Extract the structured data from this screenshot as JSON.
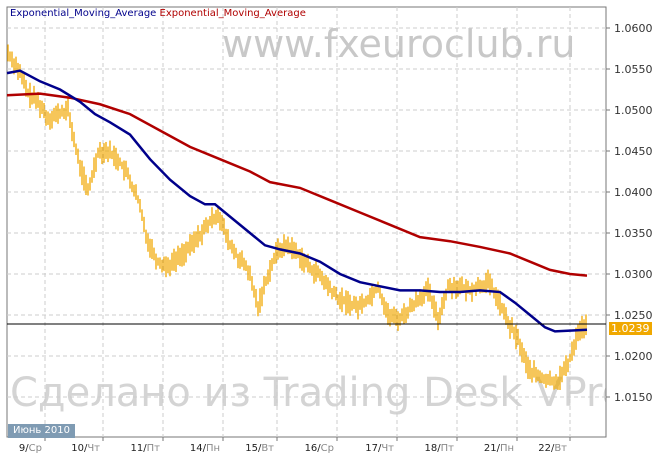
{
  "chart_data": {
    "type": "line",
    "title": "",
    "legend": [
      {
        "name": "Exponential_Moving_Average",
        "color": "#00008b"
      },
      {
        "name": "Exponential_Moving_Average",
        "color": "#b00000"
      }
    ],
    "legend_placement": "top-left",
    "ylim": [
      1.0125,
      1.063
    ],
    "yticks": [
      "1.0600",
      "1.0550",
      "1.0500",
      "1.0450",
      "1.0400",
      "1.0350",
      "1.0300",
      "1.0250",
      "1.0200",
      "1.0150"
    ],
    "month_label": "Июнь 2010",
    "xticks": [
      {
        "pos": 3.8,
        "day": "9",
        "dow": "Ср"
      },
      {
        "pos": 9.6,
        "day": "10",
        "dow": "Чт"
      },
      {
        "pos": 15.6,
        "day": "11",
        "dow": "Пт"
      },
      {
        "pos": 21.6,
        "day": "14",
        "dow": "Пн"
      },
      {
        "pos": 27.0,
        "day": "15",
        "dow": "Вт"
      },
      {
        "pos": 33.0,
        "day": "16",
        "dow": "Ср"
      },
      {
        "pos": 39.0,
        "day": "17",
        "dow": "Чт"
      },
      {
        "pos": 45.0,
        "day": "18",
        "dow": "Пт"
      },
      {
        "pos": 51.0,
        "day": "21",
        "dow": "Пн"
      },
      {
        "pos": 56.3,
        "day": "22",
        "dow": "Вт"
      }
    ],
    "grid": true,
    "current_price": "1.0239",
    "price_color": "#f0a800",
    "price": [
      1.057,
      1.055,
      1.052,
      1.051,
      1.049,
      1.0495,
      1.05,
      1.044,
      1.04,
      1.045,
      1.045,
      1.044,
      1.042,
      1.039,
      1.034,
      1.0315,
      1.031,
      1.032,
      1.033,
      1.0345,
      1.036,
      1.0375,
      1.034,
      1.032,
      1.0305,
      1.026,
      1.03,
      1.033,
      1.0335,
      1.0325,
      1.031,
      1.03,
      1.0285,
      1.027,
      1.0265,
      1.026,
      1.027,
      1.0285,
      1.025,
      1.0245,
      1.0255,
      1.027,
      1.028,
      1.0245,
      1.0285,
      1.0285,
      1.028,
      1.0285,
      1.029,
      1.027,
      1.024,
      1.022,
      1.0185,
      1.0175,
      1.017,
      1.017,
      1.019,
      1.023,
      1.024
    ],
    "ema_blue": [
      [
        0,
        1.0545
      ],
      [
        1.3,
        1.0548
      ],
      [
        3.3,
        1.0535
      ],
      [
        5.3,
        1.0525
      ],
      [
        7.3,
        1.051
      ],
      [
        8.8,
        1.0495
      ],
      [
        10.3,
        1.0485
      ],
      [
        12.3,
        1.047
      ],
      [
        14.3,
        1.044
      ],
      [
        16.3,
        1.0415
      ],
      [
        18.3,
        1.0395
      ],
      [
        19.8,
        1.0385
      ],
      [
        20.8,
        1.0385
      ],
      [
        22.3,
        1.037
      ],
      [
        24.3,
        1.035
      ],
      [
        25.8,
        1.0335
      ],
      [
        27.3,
        1.033
      ],
      [
        29.3,
        1.0325
      ],
      [
        31.3,
        1.0315
      ],
      [
        33.3,
        1.03
      ],
      [
        35.3,
        1.029
      ],
      [
        37.3,
        1.0285
      ],
      [
        39.3,
        1.028
      ],
      [
        41.3,
        1.028
      ],
      [
        43.3,
        1.0278
      ],
      [
        45.3,
        1.0278
      ],
      [
        47.3,
        1.028
      ],
      [
        49.3,
        1.0278
      ],
      [
        50.8,
        1.0265
      ],
      [
        52.3,
        1.025
      ],
      [
        53.8,
        1.0235
      ],
      [
        54.8,
        1.023
      ],
      [
        56.3,
        1.0231
      ],
      [
        58,
        1.0232
      ]
    ],
    "ema_red": [
      [
        0,
        1.0518
      ],
      [
        3.3,
        1.052
      ],
      [
        6.3,
        1.0515
      ],
      [
        9.3,
        1.0507
      ],
      [
        12.3,
        1.0495
      ],
      [
        15.3,
        1.0475
      ],
      [
        18.3,
        1.0455
      ],
      [
        21.3,
        1.044
      ],
      [
        24.3,
        1.0425
      ],
      [
        26.3,
        1.0412
      ],
      [
        29.3,
        1.0405
      ],
      [
        32.3,
        1.039
      ],
      [
        35.3,
        1.0375
      ],
      [
        38.3,
        1.036
      ],
      [
        41.3,
        1.0345
      ],
      [
        44.3,
        1.034
      ],
      [
        47.3,
        1.0333
      ],
      [
        50.3,
        1.0325
      ],
      [
        52.3,
        1.0315
      ],
      [
        54.3,
        1.0305
      ],
      [
        56.3,
        1.03
      ],
      [
        58,
        1.0298
      ]
    ]
  },
  "watermarks": {
    "top": "www.fxeuroclub.ru",
    "bottom": "Сделано из Trading Desk VPro"
  }
}
